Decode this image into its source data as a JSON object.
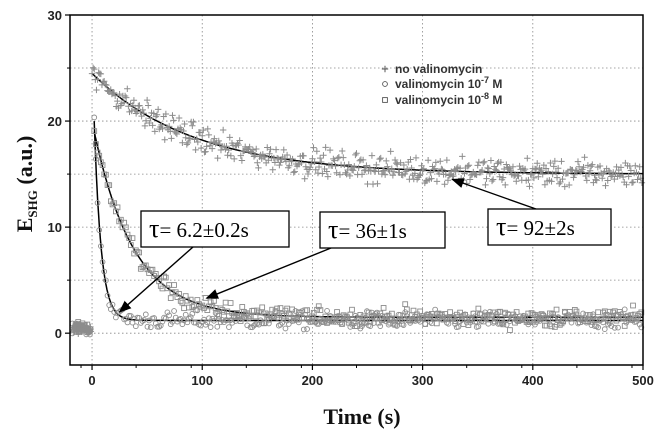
{
  "chart_data": {
    "type": "scatter",
    "xlabel": "Time (s)",
    "ylabel_main": "E",
    "ylabel_sub": "SHG",
    "ylabel_unit": " (a.u.)",
    "xlim": [
      -20,
      500
    ],
    "ylim": [
      -3,
      30
    ],
    "xticks": [
      0,
      100,
      200,
      300,
      400,
      500
    ],
    "yticks": [
      0,
      10,
      20,
      30
    ],
    "grid": "dotted",
    "legend_position": "top-right",
    "series": [
      {
        "legend_prefix": "no valinomycin",
        "legend_exp": "",
        "legend_suffix": "",
        "marker": "plus",
        "color": "#8c8c8c",
        "fit": {
          "baseline": 0.5,
          "pre_mean": 0.4,
          "start": 0,
          "initial": 24.5,
          "final": 15.0,
          "tau": 92
        },
        "noise": 0.9,
        "points": 500
      },
      {
        "legend_prefix": "valinomycin 10",
        "legend_exp": "-7",
        "legend_suffix": " M",
        "marker": "circle",
        "color": "#8c8c8c",
        "fit": {
          "baseline": 0.5,
          "pre_mean": 0.5,
          "start": 2,
          "initial": 20.0,
          "final": 1.2,
          "tau": 6.2
        },
        "noise": 0.6,
        "points": 330
      },
      {
        "legend_prefix": "valinomycin 10",
        "legend_exp": "-8",
        "legend_suffix": " M",
        "marker": "square",
        "color": "#8c8c8c",
        "fit": {
          "baseline": 0.5,
          "pre_mean": 0.5,
          "start": 2,
          "initial": 19.0,
          "final": 1.5,
          "tau": 36
        },
        "noise": 0.6,
        "points": 330
      }
    ],
    "annotations": [
      {
        "prefix": "τ",
        "text": "= 6.2±0.2s",
        "arrow_to": [
          25,
          2.0
        ]
      },
      {
        "prefix": "τ",
        "text": "= 36±1s",
        "arrow_to": [
          104,
          3.3
        ]
      },
      {
        "prefix": "τ",
        "text": "= 92±2s",
        "arrow_to": [
          327,
          14.5
        ]
      }
    ]
  }
}
